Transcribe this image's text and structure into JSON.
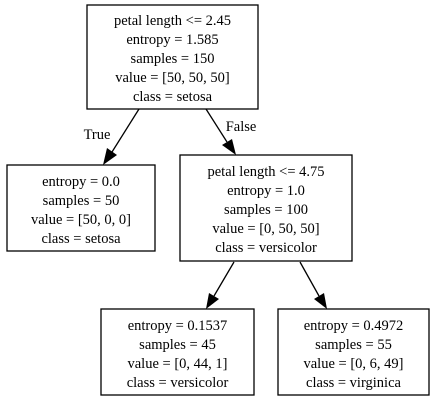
{
  "tree": {
    "nodes": [
      {
        "id": "root",
        "lines": [
          "petal length <= 2.45",
          "entropy = 1.585",
          "samples = 150",
          "value = [50, 50, 50]",
          "class = setosa"
        ]
      },
      {
        "id": "left",
        "lines": [
          "entropy = 0.0",
          "samples = 50",
          "value = [50, 0, 0]",
          "class = setosa"
        ]
      },
      {
        "id": "right",
        "lines": [
          "petal length <= 4.75",
          "entropy = 1.0",
          "samples = 100",
          "value = [0, 50, 50]",
          "class = versicolor"
        ]
      },
      {
        "id": "right-left",
        "lines": [
          "entropy = 0.1537",
          "samples = 45",
          "value = [0, 44, 1]",
          "class = versicolor"
        ]
      },
      {
        "id": "right-right",
        "lines": [
          "entropy = 0.4972",
          "samples = 55",
          "value = [0, 6, 49]",
          "class = virginica"
        ]
      }
    ],
    "edges": [
      {
        "from": "root",
        "to": "left",
        "label": "True"
      },
      {
        "from": "root",
        "to": "right",
        "label": "False"
      },
      {
        "from": "right",
        "to": "right-left",
        "label": ""
      },
      {
        "from": "right",
        "to": "right-right",
        "label": ""
      }
    ]
  }
}
